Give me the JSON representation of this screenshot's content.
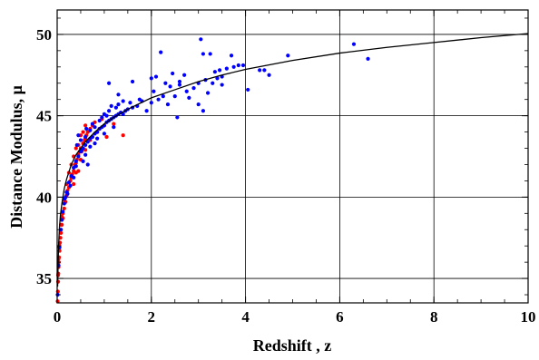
{
  "chart_data": {
    "type": "scatter",
    "title": "",
    "xlabel": "Redshift , z",
    "ylabel": "Distance Modulus, μ",
    "xlim": [
      0,
      10
    ],
    "ylim": [
      33.5,
      51.5
    ],
    "grid": true,
    "x_ticks": [
      0,
      2,
      4,
      6,
      8,
      10
    ],
    "x_tick_labels": [
      "0",
      "2",
      "4",
      "6",
      "8",
      "10"
    ],
    "y_ticks": [
      35,
      40,
      45,
      50
    ],
    "y_tick_labels": [
      "35",
      "40",
      "45",
      "50"
    ],
    "series": [
      {
        "color": "#ff0000",
        "marker": "dot",
        "points": [
          [
            0.01,
            33.6
          ],
          [
            0.015,
            34.2
          ],
          [
            0.02,
            34.8
          ],
          [
            0.025,
            35.3
          ],
          [
            0.03,
            35.7
          ],
          [
            0.035,
            36.0
          ],
          [
            0.04,
            36.3
          ],
          [
            0.05,
            36.7
          ],
          [
            0.06,
            37.2
          ],
          [
            0.07,
            37.5
          ],
          [
            0.08,
            37.8
          ],
          [
            0.1,
            38.3
          ],
          [
            0.12,
            38.7
          ],
          [
            0.15,
            39.3
          ],
          [
            0.18,
            39.7
          ],
          [
            0.2,
            40.1
          ],
          [
            0.22,
            40.4
          ],
          [
            0.25,
            40.6
          ],
          [
            0.28,
            41.0
          ],
          [
            0.3,
            41.2
          ],
          [
            0.32,
            41.4
          ],
          [
            0.35,
            41.6
          ],
          [
            0.38,
            42.0
          ],
          [
            0.4,
            42.1
          ],
          [
            0.42,
            42.3
          ],
          [
            0.45,
            42.6
          ],
          [
            0.48,
            42.8
          ],
          [
            0.5,
            43.0
          ],
          [
            0.52,
            42.8
          ],
          [
            0.55,
            43.3
          ],
          [
            0.58,
            43.5
          ],
          [
            0.6,
            43.6
          ],
          [
            0.62,
            43.8
          ],
          [
            0.65,
            44.0
          ],
          [
            0.7,
            44.2
          ],
          [
            0.75,
            44.4
          ],
          [
            0.8,
            44.6
          ],
          [
            0.3,
            42.0
          ],
          [
            0.35,
            42.5
          ],
          [
            0.4,
            43.0
          ],
          [
            0.45,
            43.2
          ],
          [
            0.5,
            43.8
          ],
          [
            0.55,
            44.0
          ],
          [
            0.6,
            44.4
          ],
          [
            0.25,
            41.5
          ],
          [
            0.2,
            40.8
          ],
          [
            0.15,
            39.8
          ],
          [
            0.12,
            39.0
          ],
          [
            0.1,
            38.8
          ],
          [
            0.08,
            38.3
          ],
          [
            0.05,
            37.0
          ],
          [
            0.03,
            36.2
          ],
          [
            0.02,
            35.2
          ],
          [
            0.4,
            41.5
          ],
          [
            0.5,
            42.3
          ],
          [
            0.6,
            42.9
          ],
          [
            0.7,
            43.5
          ],
          [
            0.85,
            44.0
          ],
          [
            0.9,
            44.2
          ],
          [
            1.0,
            44.4
          ],
          [
            0.95,
            44.8
          ],
          [
            1.05,
            43.7
          ],
          [
            1.2,
            44.5
          ],
          [
            1.4,
            43.8
          ],
          [
            0.45,
            41.6
          ],
          [
            0.35,
            40.8
          ]
        ]
      },
      {
        "color": "#0000ff",
        "marker": "dot",
        "points": [
          [
            0.01,
            34.0
          ],
          [
            0.03,
            35.8
          ],
          [
            0.05,
            36.9
          ],
          [
            0.08,
            38.0
          ],
          [
            0.1,
            38.6
          ],
          [
            0.12,
            39.1
          ],
          [
            0.15,
            39.6
          ],
          [
            0.18,
            40.0
          ],
          [
            0.2,
            40.3
          ],
          [
            0.25,
            40.9
          ],
          [
            0.3,
            41.3
          ],
          [
            0.35,
            41.8
          ],
          [
            0.4,
            42.2
          ],
          [
            0.45,
            42.5
          ],
          [
            0.5,
            42.8
          ],
          [
            0.55,
            43.0
          ],
          [
            0.6,
            43.2
          ],
          [
            0.65,
            43.4
          ],
          [
            0.7,
            43.6
          ],
          [
            0.75,
            43.7
          ],
          [
            0.8,
            43.9
          ],
          [
            0.85,
            44.0
          ],
          [
            0.9,
            44.2
          ],
          [
            0.95,
            44.3
          ],
          [
            1.0,
            44.4
          ],
          [
            1.05,
            44.6
          ],
          [
            1.1,
            44.7
          ],
          [
            1.15,
            44.8
          ],
          [
            1.2,
            44.9
          ],
          [
            1.25,
            45.0
          ],
          [
            1.3,
            45.1
          ],
          [
            1.35,
            45.2
          ],
          [
            1.4,
            45.1
          ],
          [
            1.45,
            45.3
          ],
          [
            1.5,
            45.4
          ],
          [
            1.6,
            45.5
          ],
          [
            1.7,
            45.6
          ],
          [
            0.5,
            43.5
          ],
          [
            0.6,
            42.6
          ],
          [
            0.7,
            44.1
          ],
          [
            0.8,
            43.3
          ],
          [
            0.9,
            44.7
          ],
          [
            1.0,
            43.9
          ],
          [
            1.1,
            45.3
          ],
          [
            1.2,
            44.3
          ],
          [
            1.3,
            45.7
          ],
          [
            1.0,
            45.1
          ],
          [
            0.75,
            44.5
          ],
          [
            0.55,
            42.2
          ],
          [
            0.65,
            42.0
          ],
          [
            0.45,
            43.8
          ],
          [
            1.1,
            47.0
          ],
          [
            1.3,
            46.3
          ],
          [
            1.6,
            47.1
          ],
          [
            1.75,
            46.0
          ],
          [
            1.9,
            45.3
          ],
          [
            2.0,
            45.8
          ],
          [
            2.05,
            46.5
          ],
          [
            2.1,
            47.4
          ],
          [
            2.2,
            48.9
          ],
          [
            2.25,
            46.2
          ],
          [
            2.3,
            47.0
          ],
          [
            2.35,
            45.7
          ],
          [
            2.4,
            46.8
          ],
          [
            2.5,
            46.2
          ],
          [
            2.55,
            44.9
          ],
          [
            2.6,
            46.9
          ],
          [
            2.7,
            47.5
          ],
          [
            2.75,
            46.5
          ],
          [
            2.8,
            46.1
          ],
          [
            2.9,
            46.7
          ],
          [
            3.0,
            47.0
          ],
          [
            3.05,
            49.7
          ],
          [
            3.1,
            48.8
          ],
          [
            3.1,
            45.3
          ],
          [
            3.15,
            47.2
          ],
          [
            3.2,
            46.4
          ],
          [
            3.25,
            48.8
          ],
          [
            3.3,
            47.0
          ],
          [
            3.35,
            47.7
          ],
          [
            3.4,
            47.3
          ],
          [
            3.45,
            47.8
          ],
          [
            3.5,
            46.9
          ],
          [
            3.6,
            47.9
          ],
          [
            3.7,
            48.7
          ],
          [
            3.75,
            48.0
          ],
          [
            3.85,
            48.1
          ],
          [
            3.95,
            48.1
          ],
          [
            4.05,
            46.6
          ],
          [
            4.3,
            47.8
          ],
          [
            4.4,
            47.8
          ],
          [
            4.5,
            47.5
          ],
          [
            4.9,
            48.7
          ],
          [
            6.3,
            49.4
          ],
          [
            6.6,
            48.5
          ],
          [
            2.0,
            47.3
          ],
          [
            2.15,
            46.0
          ],
          [
            2.45,
            47.6
          ],
          [
            1.8,
            45.9
          ],
          [
            1.55,
            45.8
          ],
          [
            3.0,
            45.7
          ],
          [
            1.25,
            45.5
          ],
          [
            1.05,
            45.0
          ],
          [
            0.95,
            44.9
          ],
          [
            0.85,
            43.6
          ],
          [
            0.4,
            41.9
          ],
          [
            0.35,
            41.2
          ],
          [
            0.28,
            40.7
          ],
          [
            0.22,
            40.2
          ],
          [
            0.16,
            39.9
          ],
          [
            0.6,
            43.7
          ],
          [
            0.7,
            43.1
          ],
          [
            0.8,
            44.3
          ],
          [
            1.15,
            45.6
          ],
          [
            1.4,
            45.9
          ],
          [
            2.6,
            47.1
          ],
          [
            3.5,
            47.4
          ],
          [
            0.42,
            43.2
          ],
          [
            0.52,
            42.9
          ],
          [
            0.62,
            44.2
          ]
        ]
      },
      {
        "color": "#000000",
        "marker": "line",
        "points": [
          [
            0.005,
            33.3
          ],
          [
            0.01,
            34.5
          ],
          [
            0.02,
            36.0
          ],
          [
            0.03,
            37.0
          ],
          [
            0.05,
            38.2
          ],
          [
            0.07,
            38.9
          ],
          [
            0.1,
            39.6
          ],
          [
            0.15,
            40.5
          ],
          [
            0.2,
            41.1
          ],
          [
            0.3,
            42.0
          ],
          [
            0.4,
            42.6
          ],
          [
            0.5,
            43.0
          ],
          [
            0.6,
            43.4
          ],
          [
            0.7,
            43.7
          ],
          [
            0.8,
            44.0
          ],
          [
            1.0,
            44.5
          ],
          [
            1.2,
            44.9
          ],
          [
            1.5,
            45.4
          ],
          [
            2.0,
            46.1
          ],
          [
            2.5,
            46.6
          ],
          [
            3.0,
            47.1
          ],
          [
            3.5,
            47.5
          ],
          [
            4.0,
            47.85
          ],
          [
            5.0,
            48.4
          ],
          [
            6.0,
            48.85
          ],
          [
            7.0,
            49.2
          ],
          [
            8.0,
            49.5
          ],
          [
            9.0,
            49.8
          ],
          [
            10.0,
            50.05
          ]
        ]
      }
    ]
  }
}
